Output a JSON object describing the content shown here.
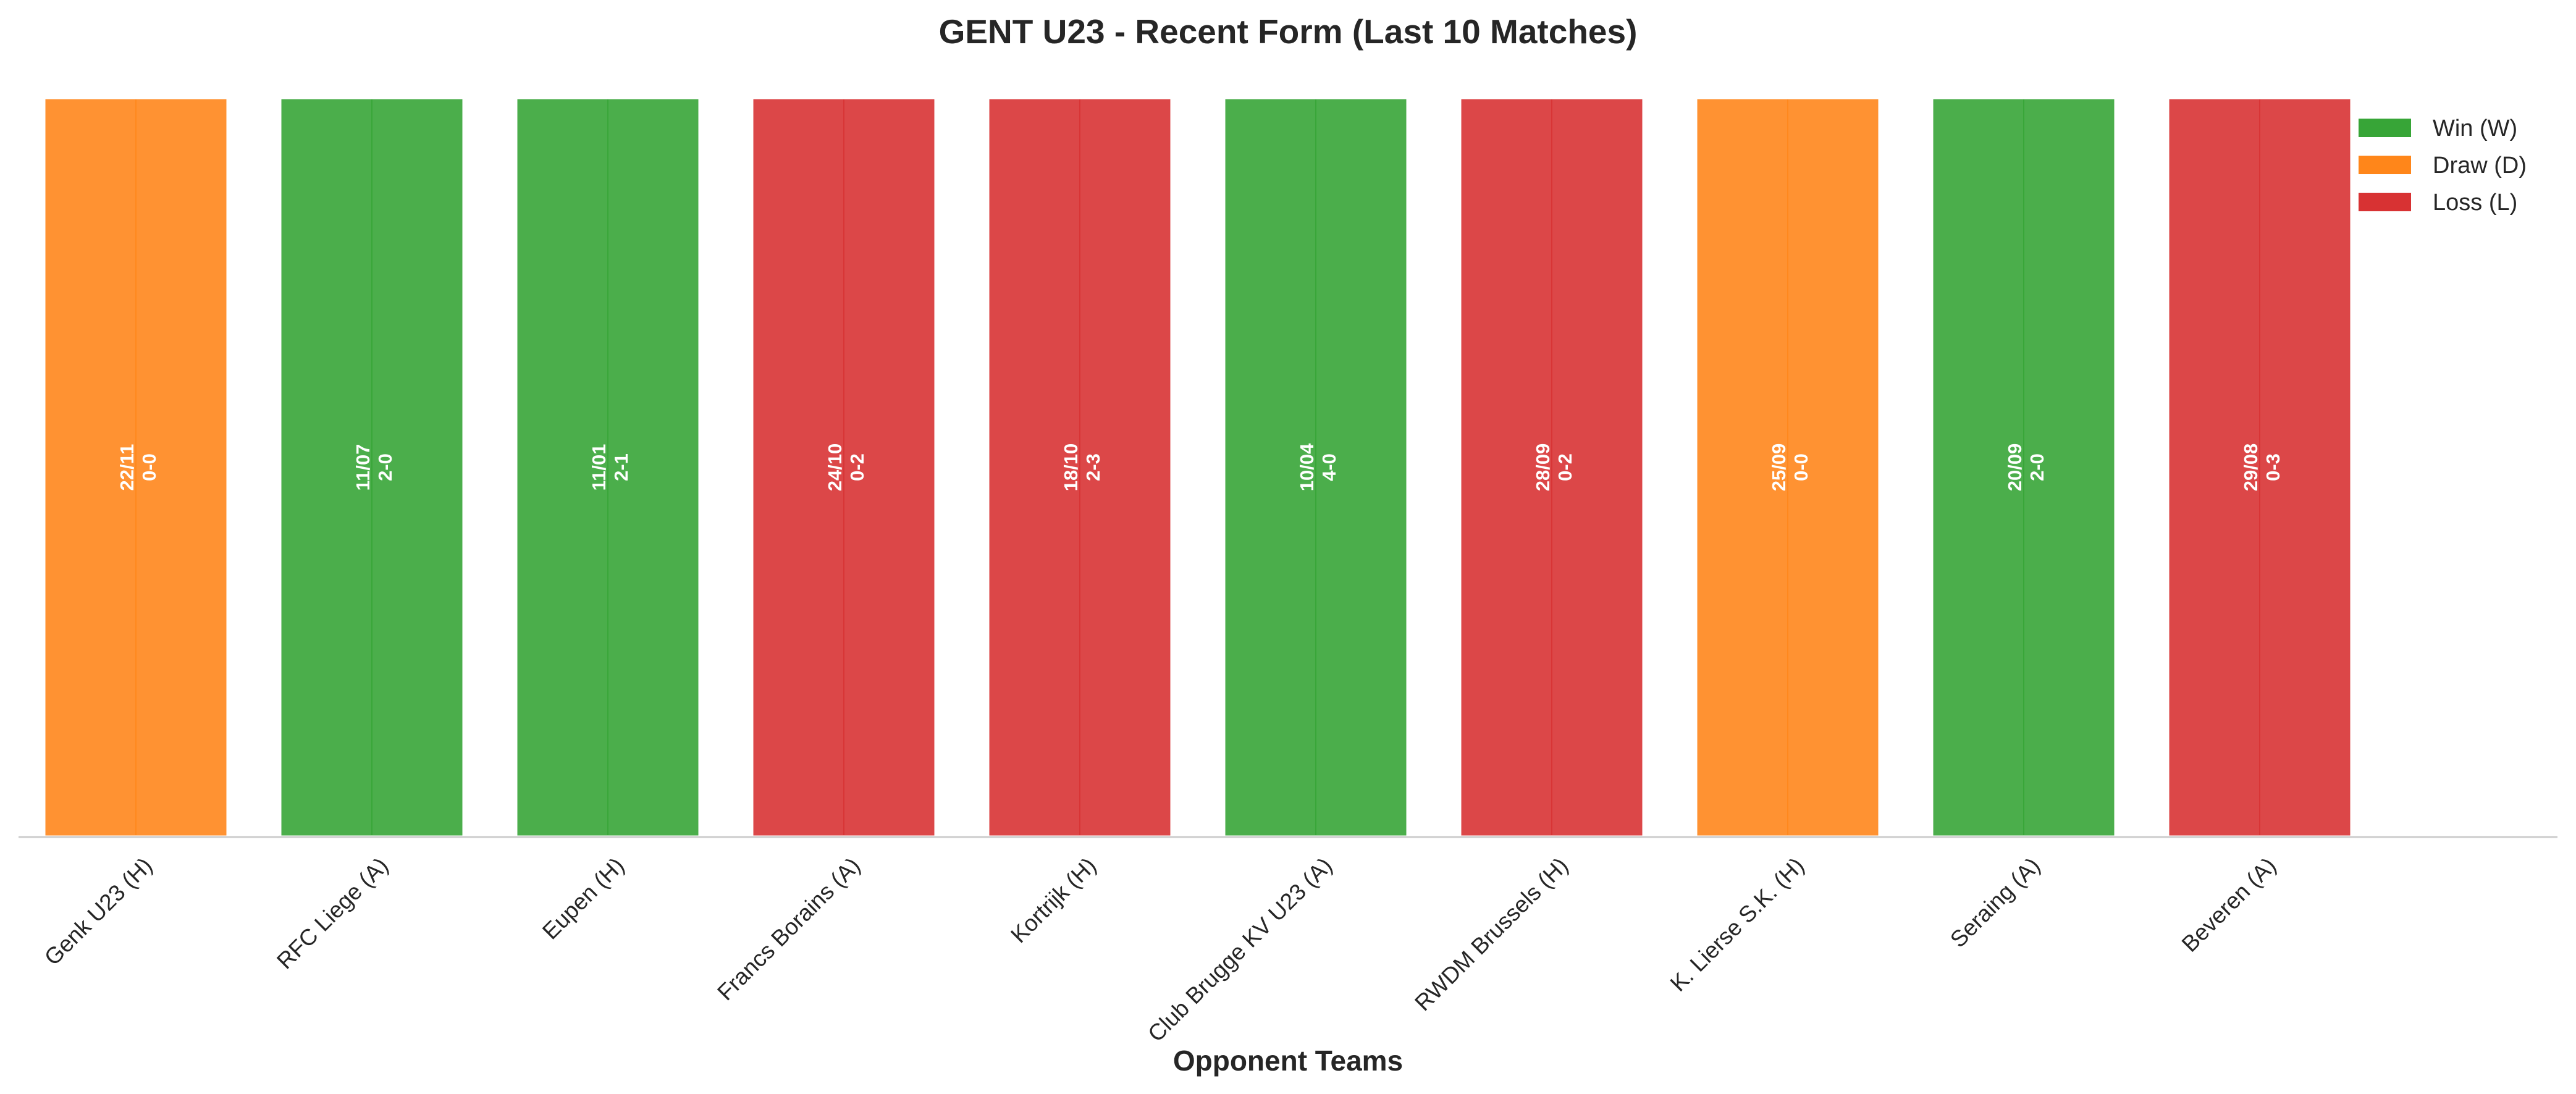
{
  "chart_data": {
    "type": "bar",
    "title": "GENT U23 - Recent Form (Last 10 Matches)",
    "xlabel": "Opponent Teams",
    "ylabel": "",
    "grid": false,
    "legend_position": "top-right",
    "colors": {
      "W": "#2ca02c",
      "D": "#ff7f0e",
      "L": "#d62728"
    },
    "legend": [
      {
        "key": "W",
        "label": "Win (W)"
      },
      {
        "key": "D",
        "label": "Draw (D)"
      },
      {
        "key": "L",
        "label": "Loss (L)"
      }
    ],
    "categories": [
      "Genk U23 (H)",
      "RFC Liege (A)",
      "Eupen (H)",
      "Francs Borains (A)",
      "Kortrijk (H)",
      "Club Brugge KV U23 (A)",
      "RWDM Brussels (H)",
      "K. Lierse S.K. (H)",
      "Seraing (A)",
      "Beveren (A)"
    ],
    "values": [
      1,
      1,
      1,
      1,
      1,
      1,
      1,
      1,
      1,
      1
    ],
    "results": [
      "D",
      "W",
      "W",
      "L",
      "L",
      "W",
      "L",
      "D",
      "W",
      "L"
    ],
    "dates": [
      "22/11",
      "11/07",
      "11/01",
      "24/10",
      "18/10",
      "10/04",
      "28/09",
      "25/09",
      "20/09",
      "29/08"
    ],
    "scores": [
      "0-0",
      "2-0",
      "2-1",
      "0-2",
      "2-3",
      "4-0",
      "0-2",
      "0-0",
      "2-0",
      "0-3"
    ],
    "ylim": [
      0,
      1
    ]
  }
}
